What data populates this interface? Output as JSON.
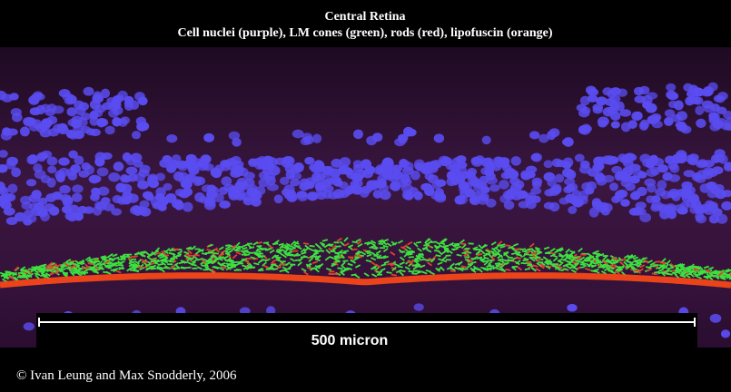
{
  "header": {
    "title": "Central Retina",
    "subtitle": "Cell nuclei (purple), LM cones (green), rods (red), lipofuscin (orange)"
  },
  "scale_bar": {
    "label": "500 micron"
  },
  "credit": "© Ivan Leung and Max Snodderly, 2006"
}
